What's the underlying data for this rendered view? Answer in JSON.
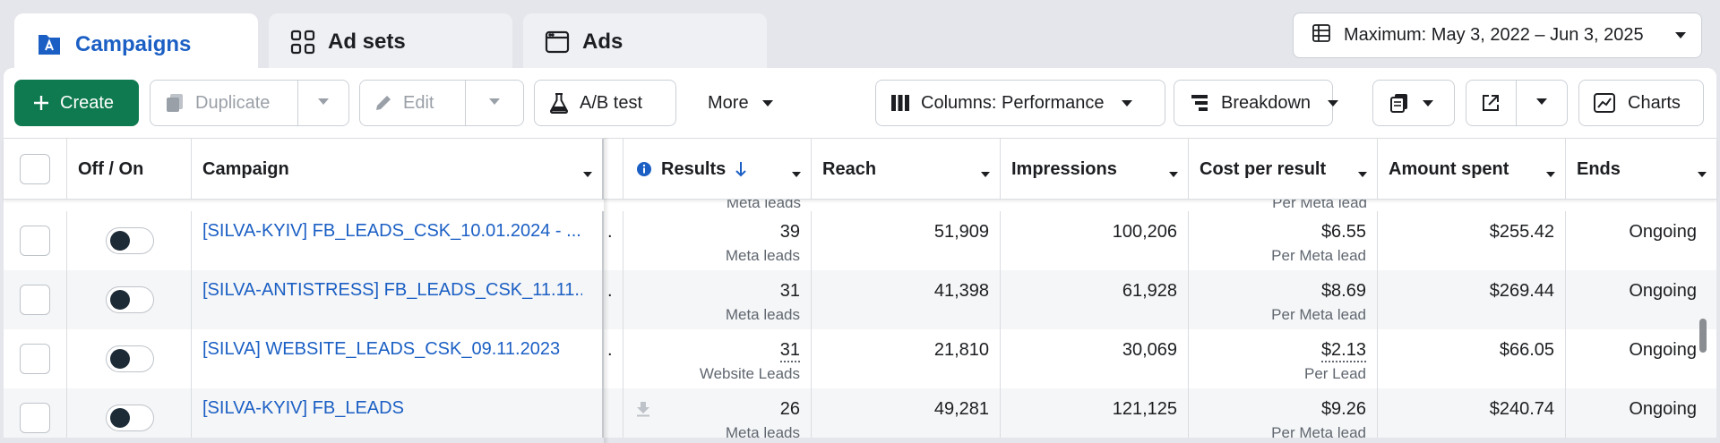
{
  "tabs": [
    {
      "label": "Campaigns",
      "active": true,
      "icon": "campaigns-icon"
    },
    {
      "label": "Ad sets",
      "active": false,
      "icon": "grid-icon"
    },
    {
      "label": "Ads",
      "active": false,
      "icon": "ad-window-icon"
    }
  ],
  "date_range": {
    "label": "Maximum: May 3, 2022 – Jun 3, 2025"
  },
  "toolbar": {
    "create": "Create",
    "duplicate": "Duplicate",
    "edit": "Edit",
    "ab_test": "A/B test",
    "more": "More",
    "columns": "Columns: Performance",
    "breakdown": "Breakdown",
    "charts": "Charts"
  },
  "table": {
    "headers": {
      "off_on": "Off / On",
      "campaign": "Campaign",
      "results": "Results",
      "reach": "Reach",
      "impressions": "Impressions",
      "cost_per_result": "Cost per result",
      "amount_spent": "Amount spent",
      "ends": "Ends"
    },
    "peek": {
      "results_sub": "Meta leads",
      "cost_sub": "Per Meta lead"
    },
    "rows": [
      {
        "campaign": "[SILVA-KYIV] FB_LEADS_CSK_10.01.2024 - ...",
        "results": "39",
        "results_sub": "Meta leads",
        "reach": "51,909",
        "impressions": "100,206",
        "cost": "$6.55",
        "cost_sub": "Per Meta lead",
        "spent": "$255.42",
        "ends": "Ongoing"
      },
      {
        "campaign": "[SILVA-ANTISTRESS] FB_LEADS_CSK_11.11....",
        "results": "31",
        "results_sub": "Meta leads",
        "reach": "41,398",
        "impressions": "61,928",
        "cost": "$8.69",
        "cost_sub": "Per Meta lead",
        "spent": "$269.44",
        "ends": "Ongoing"
      },
      {
        "campaign": "[SILVA] WEBSITE_LEADS_CSK_09.11.2023",
        "results": "31",
        "results_sub": "Website Leads",
        "reach": "21,810",
        "impressions": "30,069",
        "cost": "$2.13",
        "cost_sub": "Per Lead",
        "spent": "$66.05",
        "ends": "Ongoing"
      },
      {
        "campaign": "[SILVA-KYIV] FB_LEADS",
        "results": "26",
        "results_sub": "Meta leads",
        "reach": "49,281",
        "impressions": "121,125",
        "cost": "$9.26",
        "cost_sub": "Per Meta lead",
        "spent": "$240.74",
        "ends": "Ongoing"
      }
    ]
  },
  "colors": {
    "accent": "#1b5fc4",
    "create_green": "#0f7a4f"
  }
}
